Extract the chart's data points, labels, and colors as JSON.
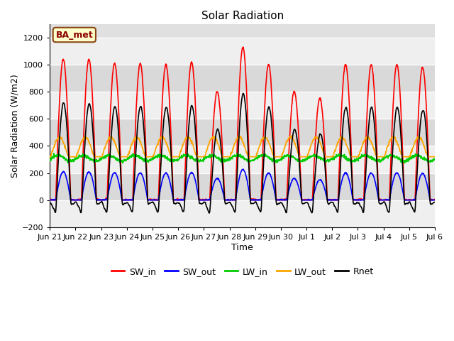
{
  "title": "Solar Radiation",
  "xlabel": "Time",
  "ylabel": "Solar Radiation (W/m2)",
  "ylim": [
    -200,
    1300
  ],
  "yticks": [
    -200,
    0,
    200,
    400,
    600,
    800,
    1000,
    1200
  ],
  "fig_bg_color": "#ffffff",
  "plot_bg_color": "#e0e0e0",
  "series": {
    "SW_in": {
      "color": "#ff0000",
      "lw": 1.2
    },
    "SW_out": {
      "color": "#0000ff",
      "lw": 1.2
    },
    "LW_in": {
      "color": "#00cc00",
      "lw": 1.2
    },
    "LW_out": {
      "color": "#ffa500",
      "lw": 1.2
    },
    "Rnet": {
      "color": "#000000",
      "lw": 1.2
    }
  },
  "n_days": 15,
  "dt_hours": 0.25,
  "site_label": "BA_met",
  "site_label_color": "#8B0000",
  "site_label_bg": "#ffffcc",
  "site_label_border": "#8B4513",
  "sw_in_peaks": [
    1040,
    1040,
    1010,
    1010,
    1000,
    1020,
    800,
    1130,
    1000,
    800,
    750,
    1000,
    1000,
    1000,
    980
  ],
  "sw_out_ratio": 0.2,
  "lw_in_base": 310,
  "lw_out_base": 375,
  "rnet_night": -80
}
